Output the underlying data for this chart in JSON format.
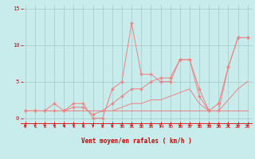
{
  "xlabel": "Vent moyen/en rafales ( km/h )",
  "bg_color": "#c8ecec",
  "grid_color": "#a0c8c8",
  "line_color": "#f08080",
  "axis_color": "#dd0000",
  "tick_color": "#dd0000",
  "label_color": "#cc0000",
  "xlim": [
    -0.5,
    23.5
  ],
  "ylim": [
    -0.8,
    15.5
  ],
  "yticks": [
    0,
    5,
    10,
    15
  ],
  "xticks": [
    0,
    1,
    2,
    3,
    4,
    5,
    6,
    7,
    8,
    9,
    10,
    11,
    12,
    13,
    14,
    15,
    16,
    17,
    18,
    19,
    20,
    21,
    22,
    23
  ],
  "line_flat1_y": [
    1,
    1,
    1,
    1,
    1,
    1,
    1,
    1,
    1,
    1,
    1,
    1,
    1,
    1,
    1,
    1,
    1,
    1,
    1,
    1,
    1,
    1,
    1,
    1
  ],
  "line_flat2_y": [
    1,
    1,
    1,
    1,
    1,
    1,
    1,
    1,
    1,
    1,
    1.5,
    2,
    2,
    2.5,
    2.5,
    3,
    3.5,
    4,
    2,
    1,
    1,
    2.5,
    4,
    5
  ],
  "line_gust_y": [
    1,
    1,
    1,
    2,
    1,
    2,
    2,
    0,
    0,
    4,
    5,
    13,
    6,
    6,
    5,
    5,
    8,
    8,
    4,
    1,
    1,
    7,
    11,
    11
  ],
  "line_diag_y": [
    1,
    1,
    1,
    1,
    1,
    1.5,
    1.5,
    0.5,
    1,
    2,
    3,
    4,
    4,
    5,
    5.5,
    5.5,
    8,
    8,
    3,
    1,
    2,
    7,
    11,
    11
  ]
}
